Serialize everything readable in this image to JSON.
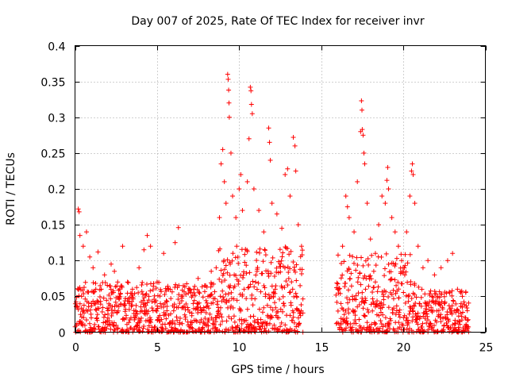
{
  "chart_data": {
    "type": "scatter",
    "title": "Day 007 of 2025, Rate Of TEC Index for receiver invr",
    "xlabel": "GPS time / hours",
    "ylabel": "ROTI / TECUs",
    "xlim": [
      0,
      25
    ],
    "ylim": [
      0,
      0.4
    ],
    "xticks": [
      0,
      5,
      10,
      15,
      20,
      25
    ],
    "xtick_labels": [
      "0",
      "5",
      "10",
      "15",
      "20",
      "25"
    ],
    "yticks": [
      0,
      0.05,
      0.1,
      0.15,
      0.2,
      0.25,
      0.3,
      0.35,
      0.4
    ],
    "ytick_labels": [
      "0",
      "0.05",
      "0.1",
      "0.15",
      "0.2",
      "0.25",
      "0.3",
      "0.35",
      "0.4"
    ],
    "grid": true,
    "marker": "+",
    "color": "#ff0000",
    "series": [
      {
        "name": "ROTI",
        "note": "dense cluster of points; data gap between ~13.9 h and ~15.9 h",
        "points": [
          [
            0.2,
            0.172
          ],
          [
            0.25,
            0.168
          ],
          [
            0.3,
            0.135
          ],
          [
            0.5,
            0.12
          ],
          [
            0.7,
            0.14
          ],
          [
            0.9,
            0.105
          ],
          [
            1.1,
            0.09
          ],
          [
            1.4,
            0.112
          ],
          [
            1.8,
            0.08
          ],
          [
            2.2,
            0.095
          ],
          [
            2.4,
            0.085
          ],
          [
            2.6,
            0.07
          ],
          [
            2.9,
            0.12
          ],
          [
            3.2,
            0.07
          ],
          [
            3.5,
            0.06
          ],
          [
            3.9,
            0.09
          ],
          [
            4.2,
            0.115
          ],
          [
            4.4,
            0.135
          ],
          [
            4.6,
            0.12
          ],
          [
            5.0,
            0.07
          ],
          [
            5.4,
            0.11
          ],
          [
            5.8,
            0.06
          ],
          [
            6.1,
            0.125
          ],
          [
            6.3,
            0.146
          ],
          [
            6.6,
            0.065
          ],
          [
            7.0,
            0.06
          ],
          [
            7.5,
            0.075
          ],
          [
            7.9,
            0.065
          ],
          [
            8.3,
            0.085
          ],
          [
            8.6,
            0.09
          ],
          [
            8.8,
            0.16
          ],
          [
            8.9,
            0.235
          ],
          [
            9.0,
            0.255
          ],
          [
            9.1,
            0.21
          ],
          [
            9.2,
            0.18
          ],
          [
            9.3,
            0.36
          ],
          [
            9.33,
            0.353
          ],
          [
            9.36,
            0.338
          ],
          [
            9.38,
            0.32
          ],
          [
            9.4,
            0.3
          ],
          [
            9.5,
            0.25
          ],
          [
            9.6,
            0.19
          ],
          [
            9.8,
            0.16
          ],
          [
            10.0,
            0.2
          ],
          [
            10.1,
            0.22
          ],
          [
            10.2,
            0.17
          ],
          [
            10.5,
            0.21
          ],
          [
            10.6,
            0.27
          ],
          [
            10.68,
            0.342
          ],
          [
            10.72,
            0.337
          ],
          [
            10.75,
            0.318
          ],
          [
            10.8,
            0.305
          ],
          [
            10.9,
            0.2
          ],
          [
            11.2,
            0.17
          ],
          [
            11.5,
            0.14
          ],
          [
            11.8,
            0.285
          ],
          [
            11.85,
            0.265
          ],
          [
            11.9,
            0.24
          ],
          [
            12.0,
            0.18
          ],
          [
            12.3,
            0.165
          ],
          [
            12.6,
            0.145
          ],
          [
            12.8,
            0.22
          ],
          [
            12.95,
            0.228
          ],
          [
            13.1,
            0.19
          ],
          [
            13.3,
            0.272
          ],
          [
            13.4,
            0.26
          ],
          [
            13.45,
            0.225
          ],
          [
            13.6,
            0.15
          ],
          [
            13.8,
            0.12
          ],
          [
            0.4,
            0.05
          ],
          [
            1.0,
            0.04
          ],
          [
            1.6,
            0.06
          ],
          [
            2.0,
            0.03
          ],
          [
            2.7,
            0.05
          ],
          [
            3.3,
            0.04
          ],
          [
            3.7,
            0.03
          ],
          [
            4.5,
            0.05
          ],
          [
            5.2,
            0.04
          ],
          [
            5.6,
            0.03
          ],
          [
            6.5,
            0.05
          ],
          [
            7.2,
            0.04
          ],
          [
            7.7,
            0.03
          ],
          [
            8.1,
            0.05
          ],
          [
            9.7,
            0.08
          ],
          [
            10.3,
            0.06
          ],
          [
            11.0,
            0.07
          ],
          [
            11.6,
            0.05
          ],
          [
            12.2,
            0.06
          ],
          [
            12.7,
            0.04
          ],
          [
            13.5,
            0.05
          ],
          [
            16.0,
            0.06
          ],
          [
            16.3,
            0.12
          ],
          [
            16.5,
            0.19
          ],
          [
            16.6,
            0.175
          ],
          [
            16.7,
            0.16
          ],
          [
            17.0,
            0.14
          ],
          [
            17.2,
            0.21
          ],
          [
            17.4,
            0.28
          ],
          [
            17.45,
            0.323
          ],
          [
            17.48,
            0.31
          ],
          [
            17.5,
            0.283
          ],
          [
            17.55,
            0.275
          ],
          [
            17.6,
            0.25
          ],
          [
            17.65,
            0.235
          ],
          [
            17.8,
            0.18
          ],
          [
            18.0,
            0.13
          ],
          [
            18.3,
            0.11
          ],
          [
            18.5,
            0.15
          ],
          [
            18.7,
            0.19
          ],
          [
            18.9,
            0.18
          ],
          [
            19.0,
            0.212
          ],
          [
            19.05,
            0.23
          ],
          [
            19.1,
            0.2
          ],
          [
            19.3,
            0.16
          ],
          [
            19.5,
            0.14
          ],
          [
            19.7,
            0.12
          ],
          [
            19.9,
            0.1
          ],
          [
            20.2,
            0.14
          ],
          [
            20.4,
            0.19
          ],
          [
            20.5,
            0.225
          ],
          [
            20.55,
            0.235
          ],
          [
            20.6,
            0.22
          ],
          [
            20.7,
            0.18
          ],
          [
            20.9,
            0.12
          ],
          [
            21.2,
            0.09
          ],
          [
            21.5,
            0.1
          ],
          [
            21.9,
            0.08
          ],
          [
            22.3,
            0.09
          ],
          [
            22.7,
            0.1
          ],
          [
            23.0,
            0.11
          ],
          [
            23.3,
            0.06
          ],
          [
            23.6,
            0.05
          ],
          [
            23.9,
            0.03
          ],
          [
            16.2,
            0.04
          ],
          [
            16.9,
            0.05
          ],
          [
            17.7,
            0.06
          ],
          [
            18.2,
            0.04
          ],
          [
            18.8,
            0.05
          ],
          [
            19.6,
            0.03
          ],
          [
            20.3,
            0.05
          ],
          [
            21.0,
            0.04
          ],
          [
            21.7,
            0.03
          ],
          [
            22.1,
            0.05
          ],
          [
            22.5,
            0.04
          ],
          [
            23.1,
            0.03
          ],
          [
            23.8,
            0.02
          ]
        ]
      }
    ]
  }
}
